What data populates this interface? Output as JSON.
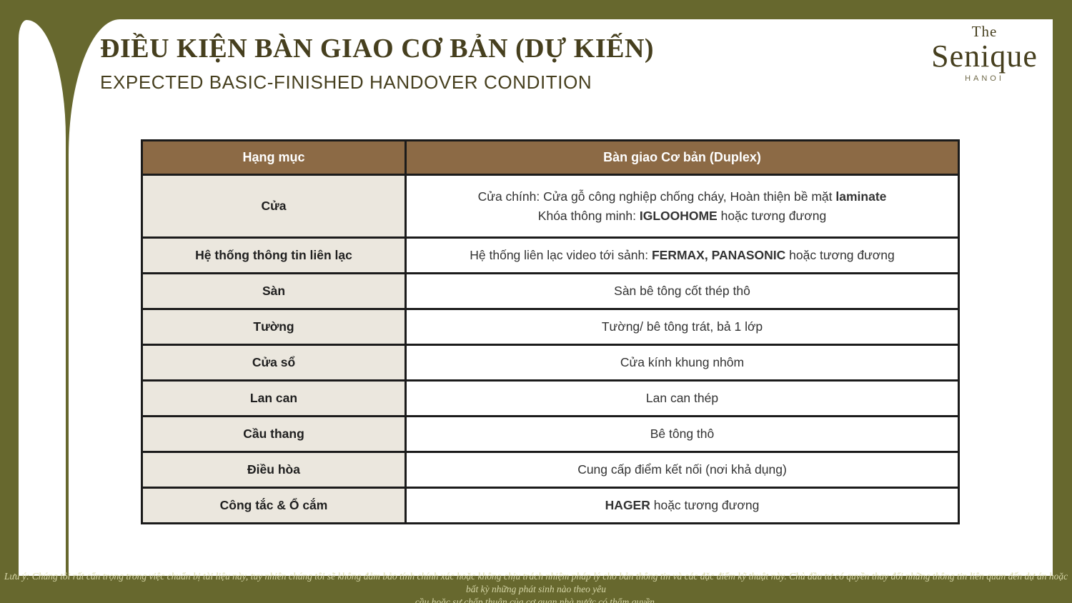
{
  "colors": {
    "olive": "#67682E",
    "brown": "#8C6A45",
    "beige": "#EBE7DE",
    "line": "#1B1B1B",
    "ink": "#463F1E",
    "footer_ink": "#D6D6A8"
  },
  "header": {
    "title_vi": "ĐIỀU KIỆN BÀN GIAO CƠ BẢN (DỰ KIẾN)",
    "title_en": "EXPECTED BASIC-FINISHED HANDOVER CONDITION"
  },
  "logo": {
    "the": "The",
    "name": "Senique",
    "city": "HANOI"
  },
  "table": {
    "headers": [
      "Hạng mục",
      "Bàn giao Cơ bản (Duplex)"
    ],
    "rows": [
      {
        "category": "Cửa",
        "tall": true,
        "lines": [
          [
            {
              "text": "Cửa chính: Cửa gỗ công nghiệp chống cháy, Hoàn thiện bề mặt ",
              "bold": false
            },
            {
              "text": "laminate",
              "bold": true
            }
          ],
          [
            {
              "text": "Khóa thông minh: ",
              "bold": false
            },
            {
              "text": "IGLOOHOME",
              "bold": true
            },
            {
              "text": " hoặc tương đương",
              "bold": false
            }
          ]
        ]
      },
      {
        "category": "Hệ thống thông tin liên lạc",
        "tall": false,
        "lines": [
          [
            {
              "text": "Hệ thống liên lạc video tới sảnh: ",
              "bold": false
            },
            {
              "text": "FERMAX, PANASONIC",
              "bold": true
            },
            {
              "text": " hoặc tương đương",
              "bold": false
            }
          ]
        ]
      },
      {
        "category": "Sàn",
        "tall": false,
        "lines": [
          [
            {
              "text": "Sàn bê tông cốt thép thô",
              "bold": false
            }
          ]
        ]
      },
      {
        "category": "Tường",
        "tall": false,
        "lines": [
          [
            {
              "text": "Tường/ bê tông trát, bả 1 lớp",
              "bold": false
            }
          ]
        ]
      },
      {
        "category": "Cửa sổ",
        "tall": false,
        "lines": [
          [
            {
              "text": "Cửa kính khung nhôm",
              "bold": false
            }
          ]
        ]
      },
      {
        "category": "Lan can",
        "tall": false,
        "lines": [
          [
            {
              "text": "Lan can thép",
              "bold": false
            }
          ]
        ]
      },
      {
        "category": "Cầu thang",
        "tall": false,
        "lines": [
          [
            {
              "text": "Bê tông thô",
              "bold": false
            }
          ]
        ]
      },
      {
        "category": "Điều hòa",
        "tall": false,
        "lines": [
          [
            {
              "text": "Cung cấp điểm kết nối (nơi khả dụng)",
              "bold": false
            }
          ]
        ]
      },
      {
        "category": "Công tắc & Ổ cắm",
        "tall": false,
        "lines": [
          [
            {
              "text": "HAGER",
              "bold": true
            },
            {
              "text": " hoặc tương đương",
              "bold": false
            }
          ]
        ]
      }
    ]
  },
  "footer": {
    "line1": "Lưu ý: Chúng tôi rất cẩn trọng trong việc chuẩn bị tài liệu này, tuy nhiên chúng tôi sẽ không đảm bảo tính chính xác hoặc không chịu trách nhiệm pháp lý cho bản thông tin và các đặc điểm kỹ thuật này. Chủ đầu tư có quyền thay đổi những thông tin liên quan đến dự án hoặc bất kỳ những phát sinh nào theo yêu",
    "line2": "cầu hoặc sự chấp thuận của cơ quan nhà nước có thẩm quyền."
  }
}
